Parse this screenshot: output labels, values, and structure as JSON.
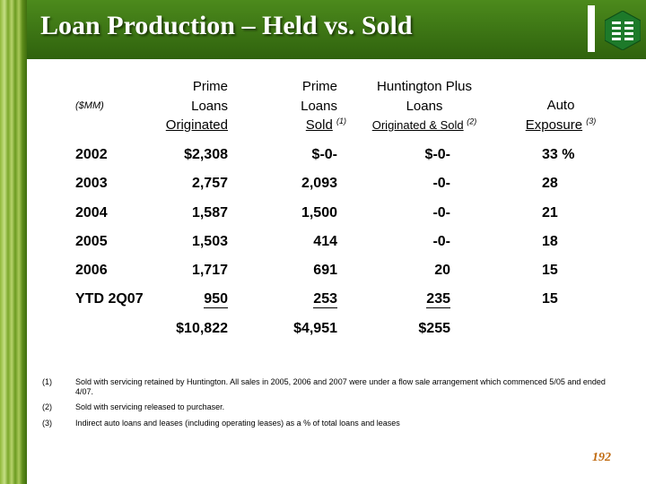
{
  "title": "Loan Production – Held vs. Sold",
  "unit_label": "($MM)",
  "columns": {
    "c1": {
      "l1": "Prime",
      "l2": "Loans",
      "l3": "Originated"
    },
    "c2": {
      "l1": "Prime",
      "l2": "Loans",
      "l3": "Sold",
      "note": "(1)"
    },
    "c3": {
      "l1": "Huntington Plus",
      "l2": "Loans",
      "l3": "Originated & Sold",
      "note": "(2)"
    },
    "c4": {
      "l2": "Auto",
      "l3": "Exposure",
      "note": "(3)"
    }
  },
  "rows": [
    {
      "year": "2002",
      "c1": "$2,308",
      "c2": "$-0-",
      "c3": "$-0-",
      "c4": "33 %"
    },
    {
      "year": "2003",
      "c1": "2,757",
      "c2": "2,093",
      "c3": "-0-",
      "c4": "28"
    },
    {
      "year": "2004",
      "c1": "1,587",
      "c2": "1,500",
      "c3": "-0-",
      "c4": "21"
    },
    {
      "year": "2005",
      "c1": "1,503",
      "c2": "414",
      "c3": "-0-",
      "c4": "18"
    },
    {
      "year": "2006",
      "c1": "1,717",
      "c2": "691",
      "c3": "20",
      "c4": "15"
    },
    {
      "year": "YTD 2Q07",
      "c1": "950",
      "c2": "253",
      "c3": "235",
      "c4": "15"
    }
  ],
  "totals": {
    "c1": "$10,822",
    "c2": "$4,951",
    "c3": "$255"
  },
  "footnotes": [
    {
      "num": "(1)",
      "text": "Sold with servicing retained by Huntington.  All sales in 2005, 2006 and 2007 were under a flow sale arrangement which commenced 5/05 and ended 4/07."
    },
    {
      "num": "(2)",
      "text": "Sold with servicing released to purchaser."
    },
    {
      "num": "(3)",
      "text": "Indirect auto loans and leases (including operating leases) as a % of total loans and leases"
    }
  ],
  "page_number": "192",
  "colors": {
    "header_green": "#3c7414",
    "page_number": "#c06a10"
  },
  "icons": [
    "huntington-logo-icon"
  ]
}
